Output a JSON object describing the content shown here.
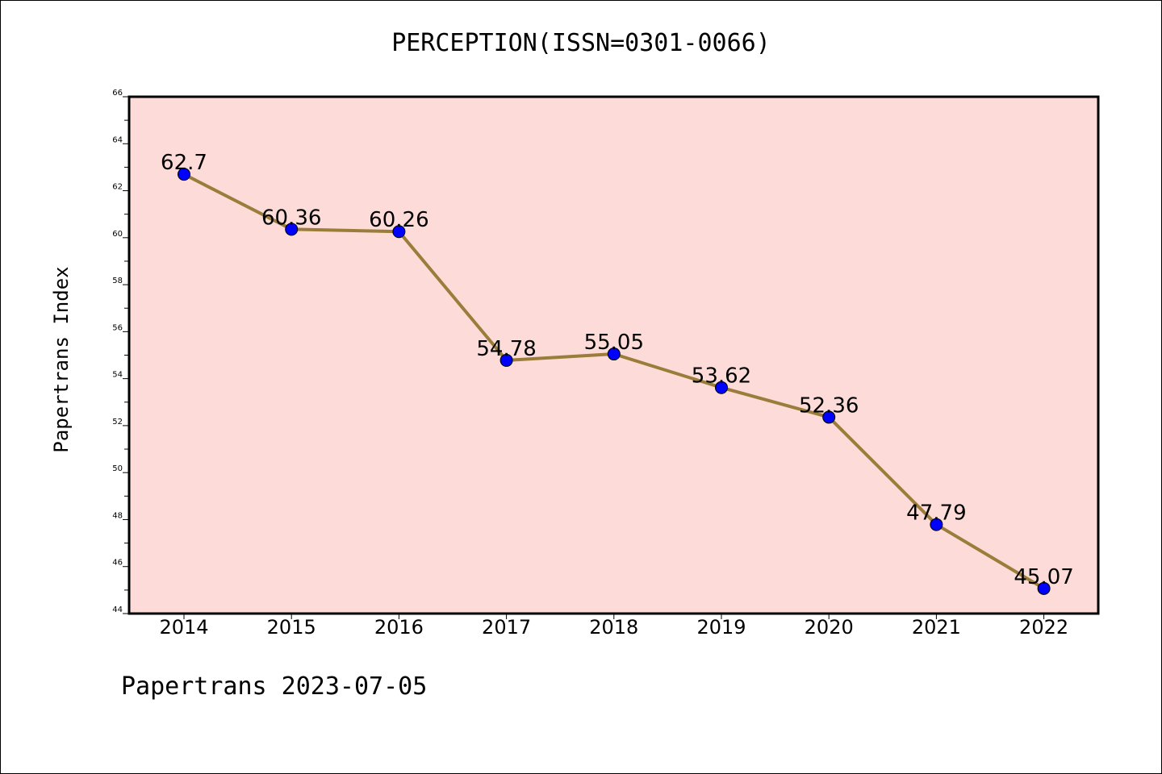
{
  "colors": {
    "plot_background": "#fddbd8",
    "line": "#9a7d3a",
    "marker": "#0000ff",
    "marker_edge": "#000000"
  },
  "footer": {
    "credit": "Papertrans 2023-07-05"
  },
  "chart_data": {
    "type": "line",
    "title": "PERCEPTION(ISSN=0301-0066)",
    "xlabel": "",
    "ylabel": "Papertrans Index",
    "categories": [
      "2014",
      "2015",
      "2016",
      "2017",
      "2018",
      "2019",
      "2020",
      "2021",
      "2022"
    ],
    "values": [
      62.7,
      60.36,
      60.26,
      54.78,
      55.05,
      53.62,
      52.36,
      47.79,
      45.07
    ],
    "data_labels": [
      "62.7",
      "60.36",
      "60.26",
      "54.78",
      "55.05",
      "53.62",
      "52.36",
      "47.79",
      "45.07"
    ],
    "ylim": [
      44,
      66
    ],
    "y_major_ticks": [
      "44",
      "46",
      "48",
      "50",
      "52",
      "54",
      "56",
      "58",
      "60",
      "62",
      "64",
      "66"
    ],
    "y_minor_step": 1,
    "grid": false,
    "legend": "none"
  }
}
